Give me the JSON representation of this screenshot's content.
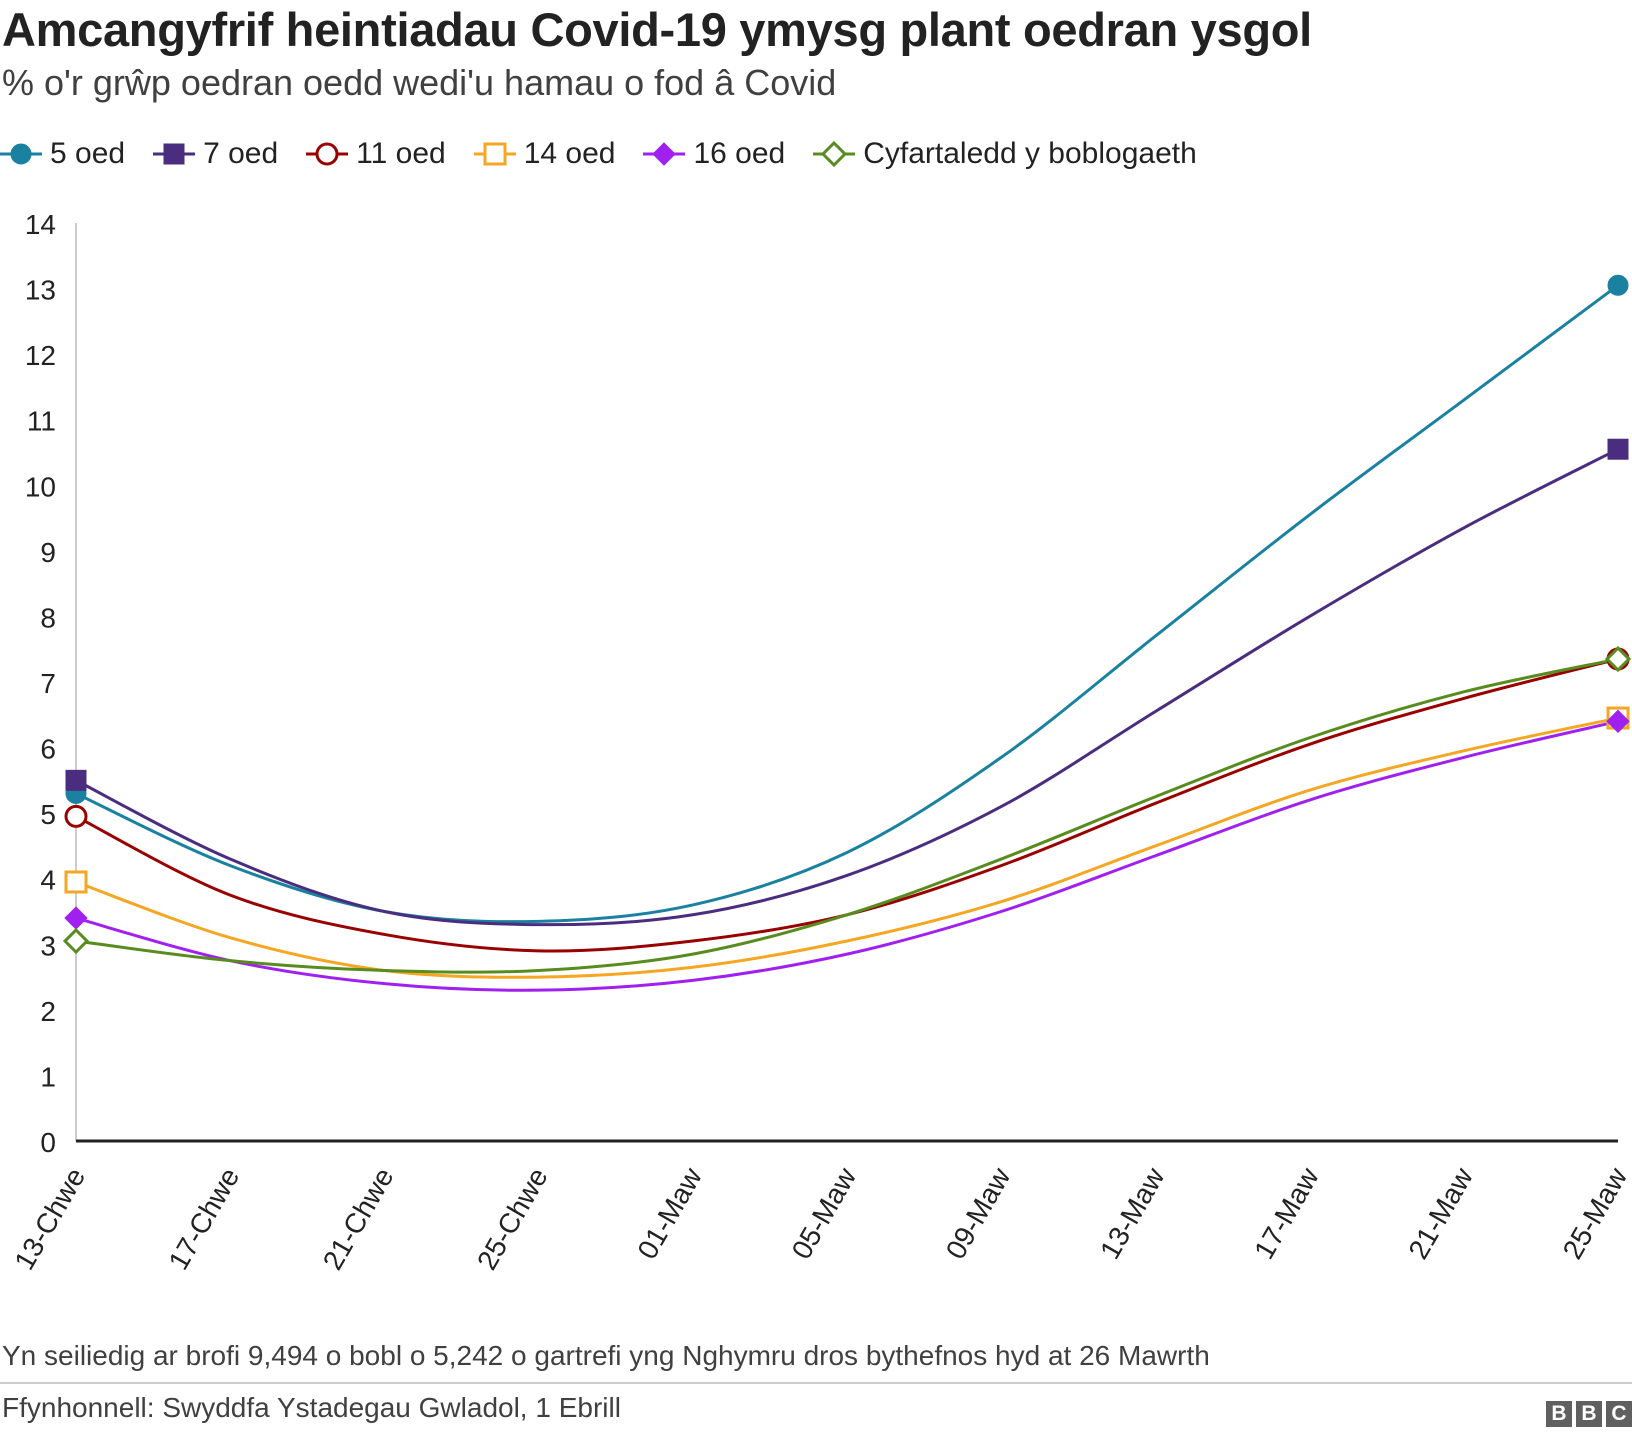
{
  "title": "Amcangyfrif heintiadau Covid-19 ymysg plant oedran ysgol",
  "subtitle": "% o'r grŵp oedran oedd wedi'u hamau o fod â Covid",
  "note": "Yn seiliedig ar brofi 9,494 o bobl o 5,242 o gartrefi yng Nghymru dros bythefnos hyd at 26 Mawrth",
  "source": "Ffynhonnell: Swyddfa Ystadegau Gwladol, 1 Ebrill",
  "logo_letters": [
    "B",
    "B",
    "C"
  ],
  "chart_data": {
    "type": "line",
    "title": "Amcangyfrif heintiadau Covid-19 ymysg plant oedran ysgol",
    "ylabel": "% o'r grŵp oedran oedd wedi'u hamau o fod â Covid",
    "xlabel": "",
    "x": [
      "13-Chwe",
      "17-Chwe",
      "21-Chwe",
      "25-Chwe",
      "01-Maw",
      "05-Maw",
      "09-Maw",
      "13-Maw",
      "17-Maw",
      "21-Maw",
      "25-Maw"
    ],
    "ylim": [
      0,
      14
    ],
    "yticks": [
      0,
      1,
      2,
      3,
      4,
      5,
      6,
      7,
      8,
      9,
      10,
      11,
      12,
      13,
      14
    ],
    "grid": false,
    "legend": "top-left",
    "markers_at_ends_only": true,
    "series": [
      {
        "name": "5 oed",
        "color": "#1a82a0",
        "marker": "circle-filled",
        "values": [
          5.3,
          4.2,
          3.5,
          3.35,
          3.6,
          4.4,
          5.85,
          7.7,
          9.55,
          11.3,
          13.05
        ]
      },
      {
        "name": "7 oed",
        "color": "#4b2d7f",
        "marker": "square-filled",
        "values": [
          5.5,
          4.3,
          3.5,
          3.3,
          3.45,
          4.05,
          5.1,
          6.55,
          8.0,
          9.35,
          10.55
        ]
      },
      {
        "name": "11 oed",
        "color": "#990000",
        "marker": "circle-open",
        "values": [
          4.95,
          3.75,
          3.15,
          2.9,
          3.05,
          3.45,
          4.2,
          5.15,
          6.05,
          6.75,
          7.35
        ]
      },
      {
        "name": "14 oed",
        "color": "#f5a623",
        "marker": "square-open",
        "values": [
          3.95,
          3.1,
          2.6,
          2.5,
          2.65,
          3.05,
          3.65,
          4.5,
          5.35,
          5.95,
          6.45
        ]
      },
      {
        "name": "16 oed",
        "color": "#a020f0",
        "marker": "diamond-filled",
        "values": [
          3.4,
          2.75,
          2.4,
          2.3,
          2.45,
          2.85,
          3.5,
          4.35,
          5.2,
          5.85,
          6.4
        ]
      },
      {
        "name": "Cyfartaledd y boblogaeth",
        "color": "#588c1e",
        "marker": "diamond-open",
        "values": [
          3.05,
          2.75,
          2.6,
          2.6,
          2.85,
          3.45,
          4.3,
          5.25,
          6.15,
          6.85,
          7.35
        ]
      }
    ]
  }
}
